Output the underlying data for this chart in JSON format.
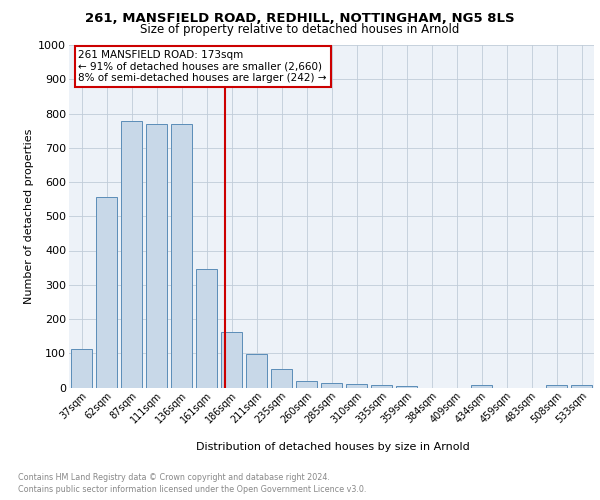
{
  "title": "261, MANSFIELD ROAD, REDHILL, NOTTINGHAM, NG5 8LS",
  "subtitle": "Size of property relative to detached houses in Arnold",
  "xlabel": "Distribution of detached houses by size in Arnold",
  "ylabel": "Number of detached properties",
  "bar_labels": [
    "37sqm",
    "62sqm",
    "87sqm",
    "111sqm",
    "136sqm",
    "161sqm",
    "186sqm",
    "211sqm",
    "235sqm",
    "260sqm",
    "285sqm",
    "310sqm",
    "335sqm",
    "359sqm",
    "384sqm",
    "409sqm",
    "434sqm",
    "459sqm",
    "483sqm",
    "508sqm",
    "533sqm"
  ],
  "bar_values": [
    113,
    557,
    778,
    770,
    768,
    345,
    161,
    97,
    53,
    20,
    13,
    10,
    7,
    5,
    0,
    0,
    8,
    0,
    0,
    8,
    8
  ],
  "bar_color": "#c8d8e8",
  "bar_edge_color": "#5b8db8",
  "vline_x": 5.72,
  "vline_color": "#cc0000",
  "annotation_lines": [
    "261 MANSFIELD ROAD: 173sqm",
    "← 91% of detached houses are smaller (2,660)",
    "8% of semi-detached houses are larger (242) →"
  ],
  "annotation_box_color": "#cc0000",
  "ylim": [
    0,
    1000
  ],
  "yticks": [
    0,
    100,
    200,
    300,
    400,
    500,
    600,
    700,
    800,
    900,
    1000
  ],
  "grid_color": "#c0ccd8",
  "background_color": "#edf2f8",
  "footer_line1": "Contains HM Land Registry data © Crown copyright and database right 2024.",
  "footer_line2": "Contains public sector information licensed under the Open Government Licence v3.0."
}
